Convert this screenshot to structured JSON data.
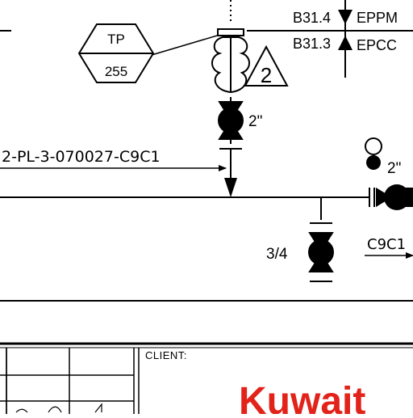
{
  "drawing": {
    "tag_top": "TP",
    "tag_bottom": "255",
    "revision_mark": "2",
    "pipe_label": "2-PL-3-070027-C9C1",
    "valve_size_main": "2\"",
    "valve_size_small": "3/4",
    "valve_size_right": "2\"",
    "spec_label_right": "C9C1",
    "code_top": "B31.4",
    "code_bottom": "B31.3",
    "spec_top": "EPPM",
    "spec_bottom": "EPCC"
  },
  "title_block": {
    "client_label": "CLIENT:",
    "client_logo_text": "Kuwait"
  },
  "colors": {
    "ink": "#000000",
    "brand_red": "#e2231a"
  }
}
